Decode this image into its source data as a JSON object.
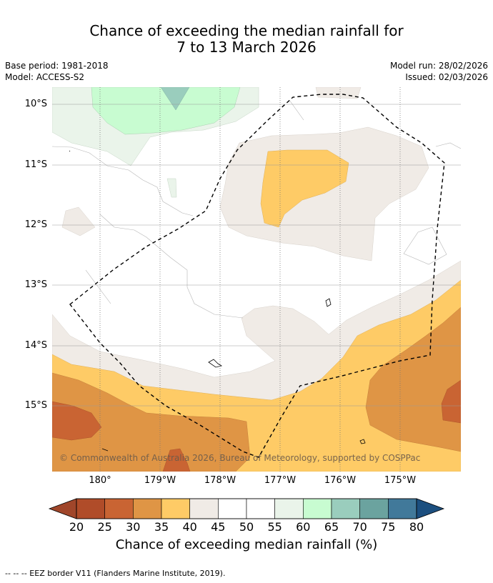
{
  "title": {
    "line1": "Chance of exceeding the median rainfall for",
    "line2": "7 to 13 March 2026"
  },
  "meta": {
    "base_period": "Base period: 1981-2018",
    "model": "Model: ACCESS-S2",
    "model_run": "Model run: 28/02/2026",
    "issued": "Issued: 02/03/2026"
  },
  "map": {
    "lat_labels": [
      "10°S",
      "11°S",
      "12°S",
      "13°S",
      "14°S",
      "15°S"
    ],
    "lon_labels": [
      "180°",
      "179°W",
      "178°W",
      "177°W",
      "176°W",
      "175°W"
    ],
    "copyright": "© Commonwealth of Australia 2026, Bureau of Meteorology, supported by COSPPac"
  },
  "colorbar": {
    "ticks": [
      "20",
      "25",
      "30",
      "35",
      "40",
      "45",
      "50",
      "55",
      "60",
      "65",
      "70",
      "75",
      "80"
    ],
    "colors": [
      "#a0462a",
      "#b04c29",
      "#c96433",
      "#df9545",
      "#fecb66",
      "#f0ebe6",
      "#ffffff",
      "#ffffff",
      "#eaf4ea",
      "#c8fcd1",
      "#9acdbd",
      "#6ba39f",
      "#41799a",
      "#1c4f7f"
    ],
    "label": "Chance of exceeding median rainfall (%)"
  },
  "footer": "--  --  -- EEZ border V11 (Flanders Marine Institute, 2019)."
}
